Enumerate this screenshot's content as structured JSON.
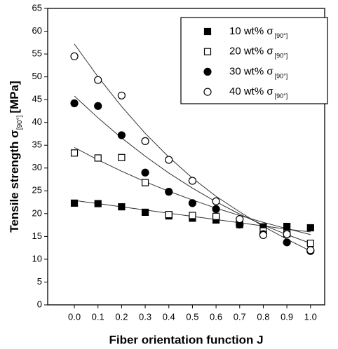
{
  "chart_data": {
    "type": "scatter",
    "x_label": "Fiber orientation function J",
    "y_label": "Tensile strength  σ",
    "y_label_sub": "[90°]",
    "y_label_unit": "[MPa]",
    "x": [
      0,
      0.1,
      0.2,
      0.3,
      0.4,
      0.5,
      0.6,
      0.7,
      0.8,
      0.9,
      1
    ],
    "xlim": [
      -0.113,
      1.06
    ],
    "ylim": [
      0,
      65
    ],
    "xticks": [
      {
        "value": 0,
        "label": "0.0"
      },
      0.1,
      0.2,
      0.3,
      0.4,
      0.5,
      0.6,
      0.7,
      0.8,
      0.9,
      {
        "value": 1,
        "label": "1.0"
      }
    ],
    "yticks": [
      0,
      5,
      10,
      15,
      20,
      25,
      30,
      35,
      40,
      45,
      50,
      55,
      60,
      65
    ],
    "legend": "upper right",
    "series": [
      {
        "name": "10 wt% σ",
        "subscript": "[90°]",
        "color": "#000000",
        "marker": "square",
        "filled": true,
        "values": [
          22.3,
          22.2,
          21.5,
          20.3,
          19.5,
          19.0,
          18.6,
          17.8,
          17.1,
          17.2,
          16.9
        ],
        "fit": [
          22.9,
          22.2,
          21.5,
          20.8,
          20.1,
          19.4,
          18.7,
          18.0,
          17.3,
          16.6,
          16.0
        ]
      },
      {
        "name": "20 wt% σ",
        "subscript": "[90°]",
        "color": "#000000",
        "marker": "square",
        "filled": false,
        "values": [
          33.3,
          32.2,
          32.3,
          26.8,
          19.8,
          19.6,
          19.4,
          17.6,
          16.2,
          15.6,
          13.5
        ],
        "fit": [
          34.5,
          31.8,
          29.3,
          27.0,
          24.9,
          23.0,
          21.2,
          19.6,
          18.1,
          16.7,
          15.4
        ]
      },
      {
        "name": "30 wt% σ",
        "subscript": "[90°]",
        "color": "#000000",
        "marker": "circle",
        "filled": true,
        "values": [
          44.2,
          43.6,
          37.2,
          29.0,
          24.8,
          22.3,
          21.0,
          17.6,
          15.5,
          13.7,
          11.8
        ],
        "fit": [
          45.8,
          41.0,
          36.6,
          32.6,
          28.9,
          25.6,
          22.6,
          19.9,
          17.5,
          15.4,
          13.5
        ]
      },
      {
        "name": "40 wt% σ",
        "subscript": "[90°]",
        "color": "#000000",
        "marker": "circle",
        "filled": false,
        "values": [
          54.5,
          49.3,
          45.9,
          35.9,
          31.8,
          27.2,
          22.7,
          18.8,
          15.3,
          15.5,
          12.0
        ],
        "fit": [
          57.2,
          50.0,
          43.5,
          37.6,
          32.4,
          27.8,
          23.8,
          20.4,
          17.2,
          14.4,
          11.8
        ]
      }
    ]
  }
}
